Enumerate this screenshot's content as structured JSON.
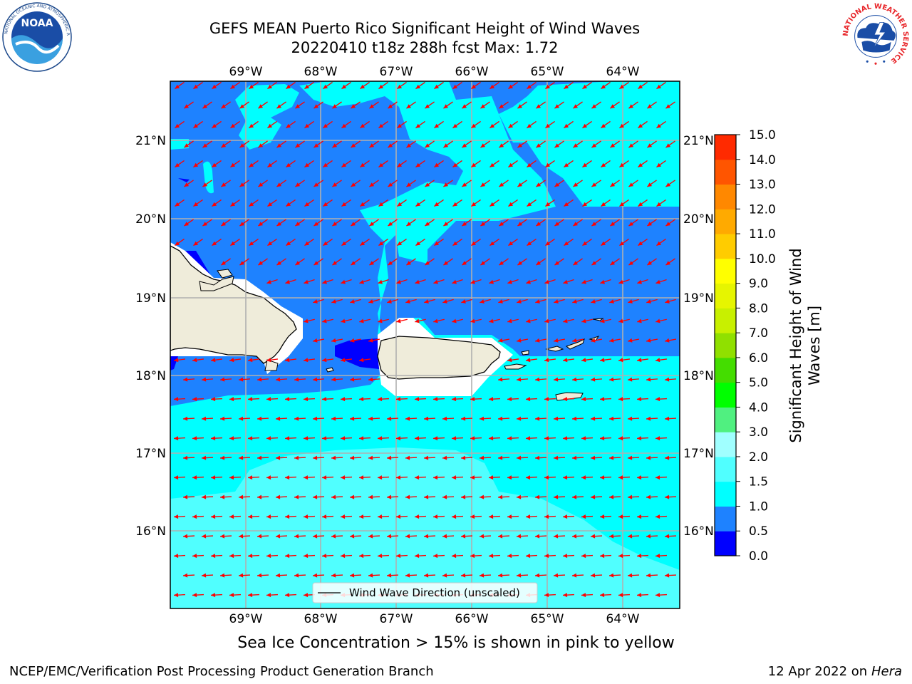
{
  "header": {
    "title_line1": "GEFS MEAN Puerto Rico Significant Height of Wind Waves",
    "title_line2": "20220410 t18z 288h fcst   Max: 1.72"
  },
  "map": {
    "lon_labels": [
      "69°W",
      "68°W",
      "67°W",
      "66°W",
      "65°W",
      "64°W"
    ],
    "lat_labels": [
      "21°N",
      "20°N",
      "19°N",
      "18°N",
      "17°N",
      "16°N"
    ],
    "legend_label": "Wind Wave Direction (unscaled)",
    "land_color": "#efecda",
    "arrow_color": "#ff0000",
    "wind_direction": "toward west-southwest (north of Puerto Rico) to west (south)"
  },
  "colorbar": {
    "label": "Significant Height of Wind Waves [m]",
    "ticks": [
      "0.0",
      "0.5",
      "1.0",
      "1.5",
      "2.0",
      "3.0",
      "4.0",
      "5.0",
      "6.0",
      "7.0",
      "8.0",
      "9.0",
      "10.0",
      "11.0",
      "12.0",
      "13.0",
      "14.0",
      "15.0"
    ],
    "colors": [
      "#0000ff",
      "#1e82ff",
      "#00ffff",
      "#50ffff",
      "#a0ffff",
      "#50f080",
      "#00ff00",
      "#44dd00",
      "#90e000",
      "#c8f000",
      "#e6f500",
      "#ffff00",
      "#ffcc00",
      "#ffaa00",
      "#ff8800",
      "#ff5500",
      "#ff2a00",
      "#ff0000"
    ]
  },
  "footer": {
    "subtitle": "Sea Ice Concentration > 15% is shown in pink to yellow",
    "credit": "NCEP/EMC/Verification Post Processing Product Generation Branch",
    "date_prefix": "12 Apr 2022 on ",
    "machine": "Hera"
  },
  "logos": {
    "noaa_text": "NOAA",
    "noaa_ring_text": "NATIONAL OCEANIC AND ATMOSPHERIC ADMINISTRATION",
    "noaa_ring_text_bottom": "U.S. DEPARTMENT OF COMMERCE",
    "nws_ring_text": "NATIONAL WEATHER SERVICE"
  }
}
